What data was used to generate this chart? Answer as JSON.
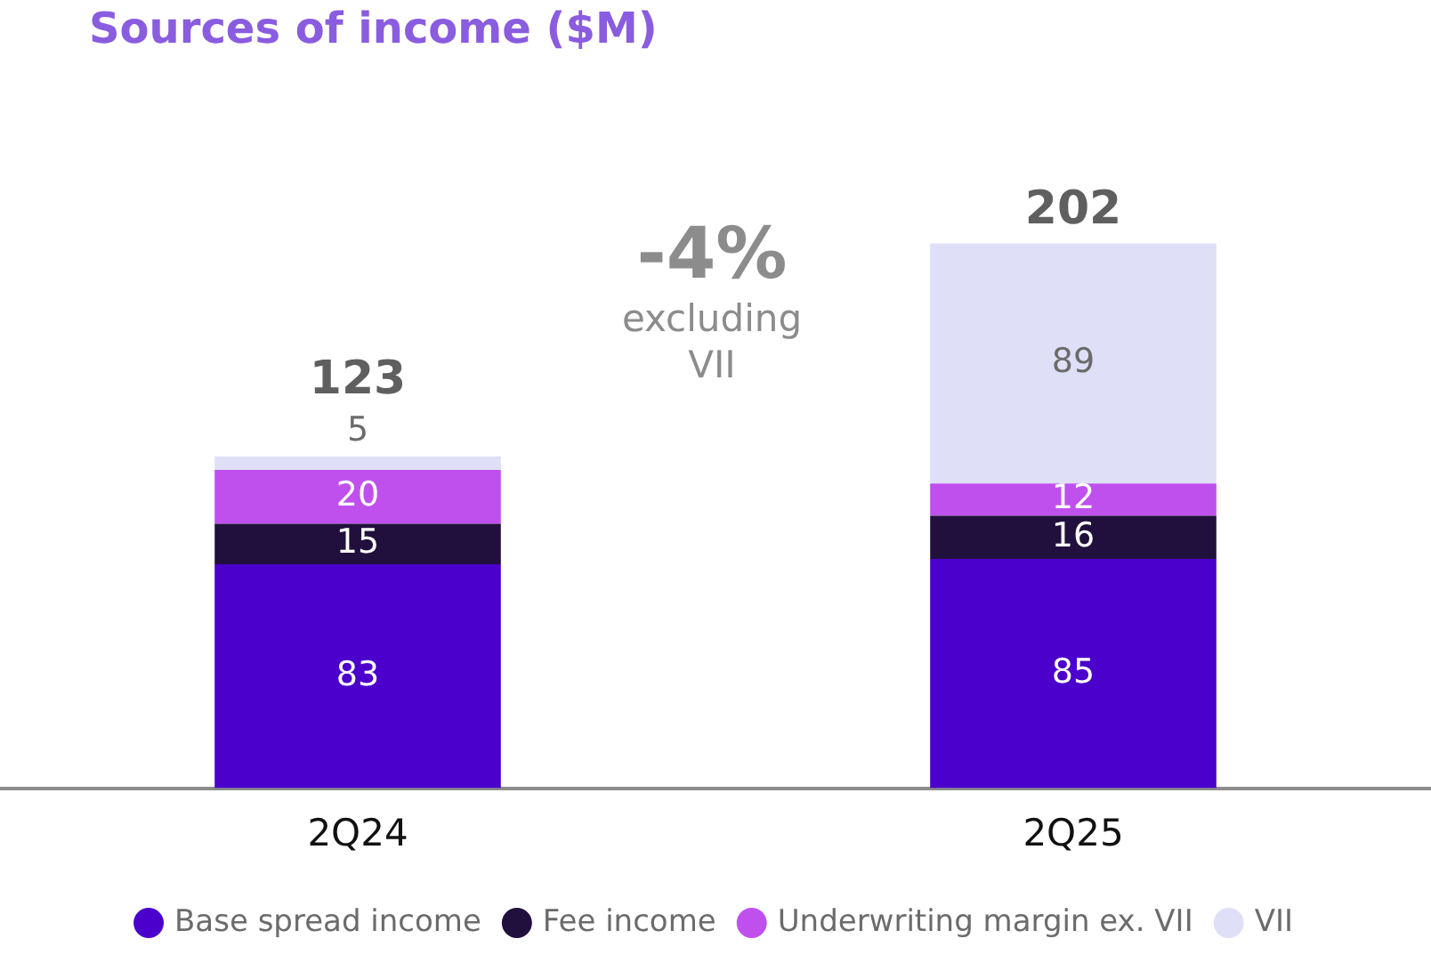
{
  "chart_data": {
    "type": "bar",
    "title": "Sources of income ($M)",
    "categories": [
      "2Q24",
      "2Q25"
    ],
    "stacked": true,
    "data_labels": true,
    "totals": [
      "123",
      "202"
    ],
    "legend": "bottom",
    "grid": false,
    "series": [
      {
        "name": "Base spread income",
        "color": "#4b00cc",
        "values": [
          83,
          85
        ]
      },
      {
        "name": "Fee income",
        "color": "#21103d",
        "values": [
          15,
          16
        ]
      },
      {
        "name": "Underwriting margin ex. VII",
        "color": "#c050ee",
        "values": [
          20,
          12
        ]
      },
      {
        "name": "VII",
        "color": "#dfdff8",
        "values": [
          5,
          89
        ]
      }
    ],
    "annotations": [
      "-4%",
      "excluding VII"
    ]
  }
}
